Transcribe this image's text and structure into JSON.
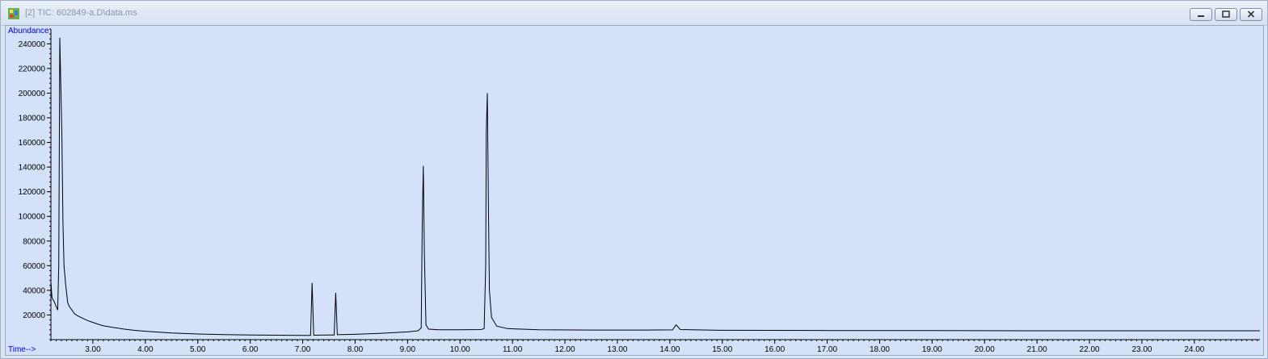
{
  "window": {
    "title": "[2] TIC: 602849-a.D\\data.ms",
    "icon": "chromatogram-icon"
  },
  "chart_data": {
    "type": "line",
    "title": "",
    "xlabel": "Time-->",
    "ylabel": "Abundance",
    "xlim": [
      2.2,
      25.25
    ],
    "ylim": [
      0,
      252000
    ],
    "x_ticks": [
      3,
      4,
      5,
      6,
      7,
      8,
      9,
      10,
      11,
      12,
      13,
      14,
      15,
      16,
      17,
      18,
      19,
      20,
      21,
      22,
      23,
      24
    ],
    "x_tick_labels": [
      "3.00",
      "4.00",
      "5.00",
      "6.00",
      "7.00",
      "8.00",
      "9.00",
      "10.00",
      "11.00",
      "12.00",
      "13.00",
      "14.00",
      "15.00",
      "16.00",
      "17.00",
      "18.00",
      "19.00",
      "20.00",
      "21.00",
      "22.00",
      "23.00",
      "24.00"
    ],
    "y_ticks": [
      20000,
      40000,
      60000,
      80000,
      100000,
      120000,
      140000,
      160000,
      180000,
      200000,
      220000,
      240000
    ],
    "y_tick_labels": [
      "20000",
      "40000",
      "60000",
      "80000",
      "100000",
      "120000",
      "140000",
      "160000",
      "180000",
      "200000",
      "220000",
      "240000"
    ],
    "grid": false,
    "series": [
      {
        "points": [
          [
            2.2,
            47000
          ],
          [
            2.22,
            34000
          ],
          [
            2.26,
            31000
          ],
          [
            2.3,
            27000
          ],
          [
            2.33,
            24000
          ],
          [
            2.35,
            60000
          ],
          [
            2.37,
            245000
          ],
          [
            2.39,
            205000
          ],
          [
            2.41,
            165000
          ],
          [
            2.43,
            95000
          ],
          [
            2.45,
            60000
          ],
          [
            2.48,
            45000
          ],
          [
            2.52,
            30000
          ],
          [
            2.55,
            27000
          ],
          [
            2.6,
            24000
          ],
          [
            2.65,
            21000
          ],
          [
            2.7,
            19500
          ],
          [
            2.8,
            17500
          ],
          [
            2.9,
            15500
          ],
          [
            3.0,
            14000
          ],
          [
            3.1,
            12500
          ],
          [
            3.2,
            11200
          ],
          [
            3.4,
            9800
          ],
          [
            3.6,
            8500
          ],
          [
            3.8,
            7500
          ],
          [
            4.0,
            6800
          ],
          [
            4.5,
            5400
          ],
          [
            5.0,
            4600
          ],
          [
            5.5,
            4100
          ],
          [
            6.0,
            3800
          ],
          [
            6.5,
            3600
          ],
          [
            7.0,
            3500
          ],
          [
            7.15,
            3500
          ],
          [
            7.18,
            46000
          ],
          [
            7.21,
            3600
          ],
          [
            7.5,
            3700
          ],
          [
            7.6,
            3800
          ],
          [
            7.63,
            38000
          ],
          [
            7.66,
            4000
          ],
          [
            8.0,
            4300
          ],
          [
            8.5,
            5200
          ],
          [
            9.0,
            6300
          ],
          [
            9.2,
            7200
          ],
          [
            9.26,
            9500
          ],
          [
            9.28,
            95000
          ],
          [
            9.3,
            141000
          ],
          [
            9.32,
            70000
          ],
          [
            9.35,
            12000
          ],
          [
            9.4,
            8500
          ],
          [
            9.6,
            8000
          ],
          [
            10.0,
            8000
          ],
          [
            10.4,
            8200
          ],
          [
            10.46,
            9000
          ],
          [
            10.49,
            60000
          ],
          [
            10.5,
            168000
          ],
          [
            10.52,
            200000
          ],
          [
            10.54,
            112000
          ],
          [
            10.56,
            40000
          ],
          [
            10.6,
            18000
          ],
          [
            10.7,
            11000
          ],
          [
            10.9,
            9000
          ],
          [
            11.5,
            8000
          ],
          [
            12.5,
            7800
          ],
          [
            13.5,
            7800
          ],
          [
            14.05,
            7900
          ],
          [
            14.12,
            12000
          ],
          [
            14.2,
            8200
          ],
          [
            15.0,
            7600
          ],
          [
            17.0,
            7400
          ],
          [
            19.0,
            7300
          ],
          [
            21.0,
            7200
          ],
          [
            23.0,
            7200
          ],
          [
            25.25,
            7200
          ]
        ]
      }
    ]
  }
}
